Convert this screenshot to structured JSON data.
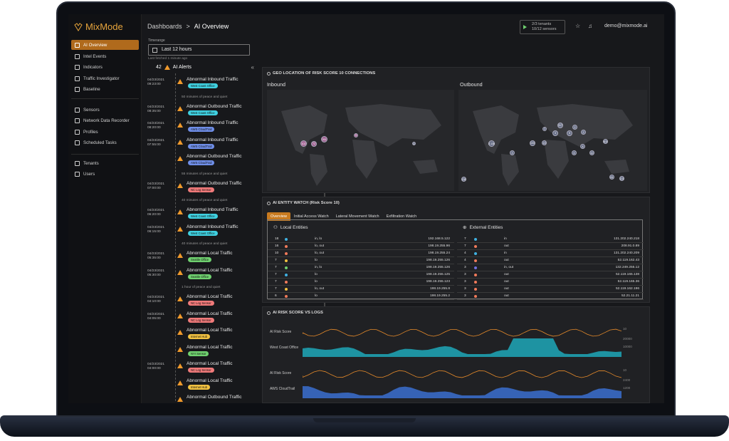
{
  "sidebar": {
    "logo": "MixMode",
    "items": [
      {
        "label": "AI Overview",
        "icon": "home-icon",
        "active": true
      },
      {
        "label": "Intel Events",
        "icon": "grid-icon"
      },
      {
        "label": "Indicators",
        "icon": "target-icon"
      },
      {
        "label": "Traffic Investigator",
        "icon": "search-icon"
      },
      {
        "label": "Baseline",
        "icon": "trend-icon"
      },
      {
        "label": "Sensors",
        "icon": "pulse-icon"
      },
      {
        "label": "Network Data Recorder",
        "icon": "disk-icon"
      },
      {
        "label": "Profiles",
        "icon": "globe-icon"
      },
      {
        "label": "Scheduled Tasks",
        "icon": "gear-icon"
      },
      {
        "label": "Tenants",
        "icon": "building-icon"
      },
      {
        "label": "Users",
        "icon": "users-icon"
      }
    ]
  },
  "header": {
    "breadcrumb_root": "Dashboards",
    "breadcrumb_sep": ">",
    "breadcrumb_current": "AI Overview",
    "tenants_line1": "2/3 tenants",
    "tenants_line2": "10/12 sensors",
    "user_email": "demo@mixmode.ai"
  },
  "timerange": {
    "label": "Timerange",
    "value": "Last 12 hours",
    "last_fetched": "Last fetched 1 minute ago"
  },
  "alerts": {
    "count": "42",
    "title": "AI Alerts",
    "collapse": "«",
    "items": [
      {
        "date": "04/23/2021",
        "time": "09:23:00",
        "title": "Abnormal Inbound Traffic",
        "tag": "West Coast Office",
        "tag_color": "#3fd0e0"
      },
      {
        "peace": "50 minutes of peace and quiet"
      },
      {
        "date": "04/23/2021",
        "time": "08:35:00",
        "title": "Abnormal Outbound Traffic",
        "tag": "West Coast Office",
        "tag_color": "#3fd0e0"
      },
      {
        "date": "04/23/2021",
        "time": "08:20:00",
        "title": "Abnormal Inbound Traffic",
        "tag": "AWS CloudTrail",
        "tag_color": "#6f8ee8"
      },
      {
        "date": "04/23/2021",
        "time": "07:55:00",
        "title": "Abnormal Inbound Traffic",
        "tag": "AWS CloudTrail",
        "tag_color": "#6f8ee8"
      },
      {
        "date": "",
        "time": "",
        "title": "Abnormal Outbound Traffic",
        "tag": "AWS CloudTrail",
        "tag_color": "#6f8ee8"
      },
      {
        "peace": "55 minutes of peace and quiet"
      },
      {
        "date": "04/23/2021",
        "time": "07:00:00",
        "title": "Abnormal Outbound Traffic",
        "tag": "NC Log Sensor",
        "tag_color": "#f07a7a"
      },
      {
        "peace": "40 minutes of peace and quiet"
      },
      {
        "date": "04/23/2021",
        "time": "06:20:00",
        "title": "Abnormal Inbound Traffic",
        "tag": "West Coast Office",
        "tag_color": "#3fd0e0"
      },
      {
        "date": "04/23/2021",
        "time": "06:15:00",
        "title": "Abnormal Inbound Traffic",
        "tag": "West Coast Office",
        "tag_color": "#3fd0e0"
      },
      {
        "peace": "40 minutes of peace and quiet"
      },
      {
        "date": "04/23/2021",
        "time": "05:35:00",
        "title": "Abnormal Local Traffic",
        "tag": "Seattle Office",
        "tag_color": "#6fd06f"
      },
      {
        "date": "04/23/2021",
        "time": "05:30:00",
        "title": "Abnormal Local Traffic",
        "tag": "Seattle Office",
        "tag_color": "#6fd06f"
      },
      {
        "peace": "1 hour of peace and quiet"
      },
      {
        "date": "04/23/2021",
        "time": "04:10:00",
        "title": "Abnormal Local Traffic",
        "tag": "NC Log Sensor",
        "tag_color": "#f07a7a"
      },
      {
        "date": "04/23/2021",
        "time": "04:05:00",
        "title": "Abnormal Local Traffic",
        "tag": "NC Log Sensor",
        "tag_color": "#f07a7a"
      },
      {
        "date": "",
        "time": "",
        "title": "Abnormal Local Traffic",
        "tag": "Internet Hub",
        "tag_color": "#f0c040"
      },
      {
        "date": "",
        "time": "",
        "title": "Abnormal Local Traffic",
        "tag": "NYI Sensor",
        "tag_color": "#6fd06f"
      },
      {
        "date": "04/23/2021",
        "time": "04:00:00",
        "title": "Abnormal Local Traffic",
        "tag": "NC Log Sensor",
        "tag_color": "#f07a7a"
      },
      {
        "date": "",
        "time": "",
        "title": "Abnormal Local Traffic",
        "tag": "Internet Hub",
        "tag_color": "#f0c040"
      },
      {
        "date": "",
        "time": "",
        "title": "Abnormal Outbound Traffic",
        "tag": "",
        "tag_color": ""
      }
    ]
  },
  "geo": {
    "title": "GEO LOCATION OF RISK SCORE 10 CONNECTIONS",
    "inbound_label": "Inbound",
    "outbound_label": "Outbound",
    "inbound_bubbles": [
      "102",
      "72",
      "261",
      "5",
      "4"
    ],
    "outbound_bubbles": [
      "1",
      "3",
      "317",
      "5",
      "2",
      "2",
      "2.13k",
      "601",
      "136",
      "61",
      "131",
      "100",
      "19",
      "3",
      "6",
      "8",
      "12"
    ]
  },
  "entity": {
    "title": "AI ENTITY WATCH (Risk Score 10)",
    "tabs": [
      "Overview",
      "Initial Access Watch",
      "Lateral Movement Watch",
      "Exfiltration Watch"
    ],
    "local_title": "Local Entities",
    "external_title": "External Entities",
    "local_rows": [
      {
        "n": "18",
        "dir": "in, lo",
        "ip": "192.168.5.122",
        "color": "#3fb0e0"
      },
      {
        "n": "16",
        "dir": "lo, out",
        "ip": "198.19.255.96",
        "color": "#f07a5a"
      },
      {
        "n": "10",
        "dir": "lo, out",
        "ip": "198.19.255.24",
        "color": "#f07a5a"
      },
      {
        "n": "7",
        "dir": "lo",
        "ip": "198.19.255.126",
        "color": "#f0c040"
      },
      {
        "n": "7",
        "dir": "in, lo",
        "ip": "198.19.255.126",
        "color": "#6fd06f"
      },
      {
        "n": "7",
        "dir": "lo",
        "ip": "198.19.255.125",
        "color": "#3fb0e0"
      },
      {
        "n": "7",
        "dir": "lo",
        "ip": "198.19.255.123",
        "color": "#f07a5a"
      },
      {
        "n": "7",
        "dir": "lo, out",
        "ip": "198.19.255.8",
        "color": "#f0c040"
      },
      {
        "n": "6",
        "dir": "lo",
        "ip": "198.19.255.2",
        "color": "#f07a5a"
      }
    ],
    "external_rows": [
      {
        "n": "7",
        "dir": "in",
        "ip": "131.202.240.218",
        "color": "#3fb0e0"
      },
      {
        "n": "7",
        "dir": "out",
        "ip": "208.91.0.89",
        "color": "#f07a5a"
      },
      {
        "n": "4",
        "dir": "in",
        "ip": "131.202.240.209",
        "color": "#3fb0e0"
      },
      {
        "n": "4",
        "dir": "out",
        "ip": "52.119.162.43",
        "color": "#f07a5a"
      },
      {
        "n": "3",
        "dir": "in, out",
        "ip": "132.249.255.12",
        "color": "#7070e0"
      },
      {
        "n": "3",
        "dir": "out",
        "ip": "52.119.165.138",
        "color": "#f07a5a"
      },
      {
        "n": "3",
        "dir": "out",
        "ip": "52.119.165.36",
        "color": "#f07a5a"
      },
      {
        "n": "3",
        "dir": "out",
        "ip": "52.119.162.196",
        "color": "#f07a5a"
      },
      {
        "n": "3",
        "dir": "out",
        "ip": "52.21.11.21",
        "color": "#f07a5a"
      }
    ]
  },
  "riskchart": {
    "title": "AI RISK SCORE VS LOGS",
    "rows": [
      {
        "score_label": "AI Risk Score",
        "logs_label": "West Coast Office",
        "score_max": "10",
        "log_ticks": [
          "20000",
          "10000"
        ],
        "fill": "#1ea7b8"
      },
      {
        "score_label": "AI Risk Score",
        "logs_label": "AWS CloudTrail",
        "score_max": "10",
        "log_ticks": [
          "2400",
          "1200"
        ],
        "fill": "#3b6fd0"
      }
    ]
  }
}
